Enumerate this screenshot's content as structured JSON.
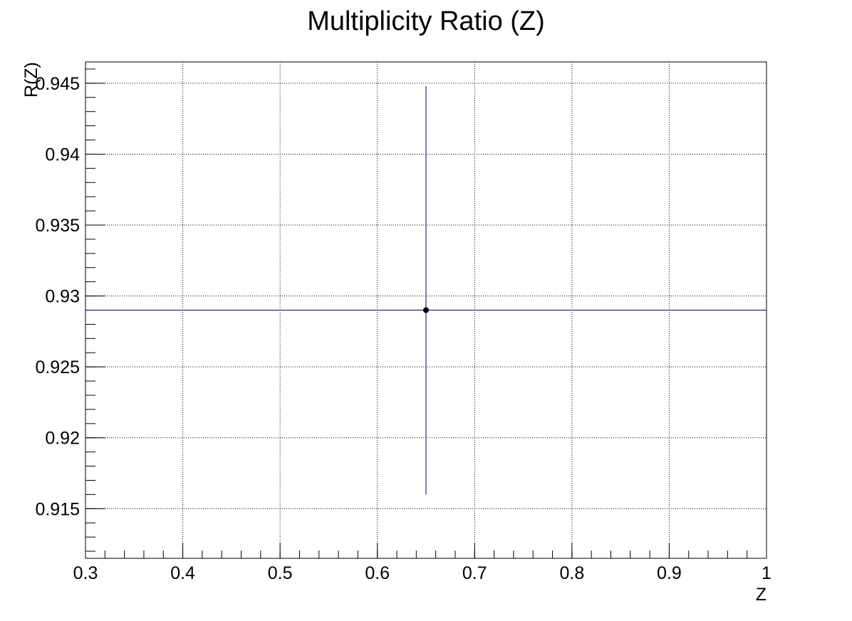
{
  "chart_data": {
    "type": "scatter",
    "title": "Multiplicity Ratio (Z)",
    "xlabel": "Z",
    "ylabel": "R(Z)",
    "xlim": [
      0.3,
      1.0
    ],
    "ylim": [
      0.9115,
      0.9465
    ],
    "x_ticks": [
      0.3,
      0.4,
      0.5,
      0.6,
      0.7,
      0.8,
      0.9,
      1.0
    ],
    "x_tick_labels": [
      "0.3",
      "0.4",
      "0.5",
      "0.6",
      "0.7",
      "0.8",
      "0.9",
      "1"
    ],
    "y_ticks": [
      0.915,
      0.92,
      0.925,
      0.93,
      0.935,
      0.94,
      0.945
    ],
    "y_tick_labels": [
      "0.915",
      "0.92",
      "0.925",
      "0.93",
      "0.935",
      "0.94",
      "0.945"
    ],
    "grid": true,
    "points": [
      {
        "x": 0.65,
        "y": 0.929,
        "y_err_low": 0.916,
        "y_err_high": 0.9448,
        "x_err_low": 0.3,
        "x_err_high": 1.0
      }
    ],
    "colors": {
      "error_bar": "#00007f",
      "marker": "#000000",
      "grid": "#000000",
      "axes": "#000000"
    }
  }
}
